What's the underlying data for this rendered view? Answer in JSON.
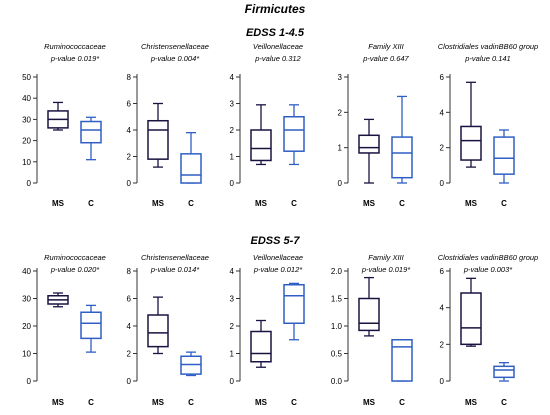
{
  "figure": {
    "title": "Firmicutes",
    "colors": {
      "MS": "#1a1240",
      "C": "#2f5fc4",
      "axis": "#333333"
    }
  },
  "chart_data": [
    {
      "type": "box",
      "group": "EDSS 1-4.5",
      "title": "Ruminococcaceae",
      "pvalue": "p-value 0.019*",
      "categories": [
        "MS",
        "C"
      ],
      "ylim": [
        0,
        50
      ],
      "yticks": [
        0,
        10,
        20,
        30,
        40,
        50
      ],
      "boxes": [
        {
          "name": "MS",
          "min": 25,
          "q1": 26,
          "median": 30,
          "q3": 34,
          "max": 38
        },
        {
          "name": "C",
          "min": 11,
          "q1": 19,
          "median": 25,
          "q3": 29,
          "max": 31
        }
      ]
    },
    {
      "type": "box",
      "group": "EDSS 1-4.5",
      "title": "Christensenellaceae",
      "pvalue": "p-value 0.004*",
      "categories": [
        "MS",
        "C"
      ],
      "ylim": [
        0,
        8
      ],
      "yticks": [
        0,
        2,
        4,
        6,
        8
      ],
      "boxes": [
        {
          "name": "MS",
          "min": 1.2,
          "q1": 1.8,
          "median": 4.0,
          "q3": 4.7,
          "max": 6.0
        },
        {
          "name": "C",
          "min": 0,
          "q1": 0,
          "median": 0.6,
          "q3": 2.2,
          "max": 3.8
        }
      ]
    },
    {
      "type": "box",
      "group": "EDSS 1-4.5",
      "title": "Veillonellaceae",
      "pvalue": "p-value 0.312",
      "categories": [
        "MS",
        "C"
      ],
      "ylim": [
        0,
        4
      ],
      "yticks": [
        0,
        1,
        2,
        3,
        4
      ],
      "boxes": [
        {
          "name": "MS",
          "min": 0.7,
          "q1": 0.85,
          "median": 1.3,
          "q3": 2.0,
          "max": 2.95
        },
        {
          "name": "C",
          "min": 0.7,
          "q1": 1.2,
          "median": 2.0,
          "q3": 2.5,
          "max": 2.95
        }
      ]
    },
    {
      "type": "box",
      "group": "EDSS 1-4.5",
      "title": "Family XIII",
      "pvalue": "p-value 0.647",
      "categories": [
        "MS",
        "C"
      ],
      "ylim": [
        0,
        3
      ],
      "yticks": [
        0,
        1,
        2,
        3
      ],
      "boxes": [
        {
          "name": "MS",
          "min": 0,
          "q1": 0.85,
          "median": 1.0,
          "q3": 1.35,
          "max": 1.8
        },
        {
          "name": "C",
          "min": 0,
          "q1": 0.15,
          "median": 0.85,
          "q3": 1.3,
          "max": 2.45
        }
      ]
    },
    {
      "type": "box",
      "group": "EDSS 1-4.5",
      "title": "Clostridiales vadinBB60 group",
      "pvalue": "p-value 0.141",
      "categories": [
        "MS",
        "C"
      ],
      "ylim": [
        0,
        6
      ],
      "yticks": [
        0,
        2,
        4,
        6
      ],
      "boxes": [
        {
          "name": "MS",
          "min": 0.9,
          "q1": 1.3,
          "median": 2.4,
          "q3": 3.2,
          "max": 5.7
        },
        {
          "name": "C",
          "min": 0,
          "q1": 0.5,
          "median": 1.4,
          "q3": 2.6,
          "max": 3.0
        }
      ]
    },
    {
      "type": "box",
      "group": "EDSS 5-7",
      "title": "Ruminococcaceae",
      "pvalue": "p-value 0.020*",
      "categories": [
        "MS",
        "C"
      ],
      "ylim": [
        0,
        40
      ],
      "yticks": [
        0,
        10,
        20,
        30,
        40
      ],
      "boxes": [
        {
          "name": "MS",
          "min": 27,
          "q1": 28,
          "median": 29.5,
          "q3": 31,
          "max": 32
        },
        {
          "name": "C",
          "min": 10.5,
          "q1": 15.5,
          "median": 21,
          "q3": 25,
          "max": 27.5
        }
      ]
    },
    {
      "type": "box",
      "group": "EDSS 5-7",
      "title": "Christensenellaceae",
      "pvalue": "p-value 0.014*",
      "categories": [
        "MS",
        "C"
      ],
      "ylim": [
        0,
        8
      ],
      "yticks": [
        0,
        2,
        4,
        6,
        8
      ],
      "boxes": [
        {
          "name": "MS",
          "min": 2.0,
          "q1": 2.5,
          "median": 3.5,
          "q3": 4.8,
          "max": 6.1
        },
        {
          "name": "C",
          "min": 0.4,
          "q1": 0.5,
          "median": 1.2,
          "q3": 1.8,
          "max": 2.1
        }
      ]
    },
    {
      "type": "box",
      "group": "EDSS 5-7",
      "title": "Veillonellaceae",
      "pvalue": "p-value 0.012*",
      "categories": [
        "MS",
        "C"
      ],
      "ylim": [
        0,
        4
      ],
      "yticks": [
        0,
        1,
        2,
        3,
        4
      ],
      "boxes": [
        {
          "name": "MS",
          "min": 0.5,
          "q1": 0.7,
          "median": 1.0,
          "q3": 1.8,
          "max": 2.2
        },
        {
          "name": "C",
          "min": 1.5,
          "q1": 2.1,
          "median": 3.1,
          "q3": 3.5,
          "max": 3.55
        }
      ]
    },
    {
      "type": "box",
      "group": "EDSS 5-7",
      "title": "Family XIII",
      "pvalue": "p-value 0.019*",
      "categories": [
        "MS",
        "C"
      ],
      "ylim": [
        0,
        2.0
      ],
      "yticks": [
        0.0,
        0.5,
        1.0,
        1.5,
        2.0
      ],
      "boxes": [
        {
          "name": "MS",
          "min": 0.82,
          "q1": 0.92,
          "median": 1.05,
          "q3": 1.5,
          "max": 1.88
        },
        {
          "name": "C",
          "min": 0,
          "q1": 0,
          "median": 0.62,
          "q3": 0.75,
          "max": 0.75
        }
      ]
    },
    {
      "type": "box",
      "group": "EDSS 5-7",
      "title": "Clostridiales vadinBB60 group",
      "pvalue": "p-value 0.003*",
      "categories": [
        "MS",
        "C"
      ],
      "ylim": [
        0,
        6
      ],
      "yticks": [
        0,
        2,
        4,
        6
      ],
      "boxes": [
        {
          "name": "MS",
          "min": 1.9,
          "q1": 2.0,
          "median": 2.9,
          "q3": 4.8,
          "max": 5.6
        },
        {
          "name": "C",
          "min": 0,
          "q1": 0.2,
          "median": 0.6,
          "q3": 0.8,
          "max": 1.0
        }
      ]
    }
  ]
}
